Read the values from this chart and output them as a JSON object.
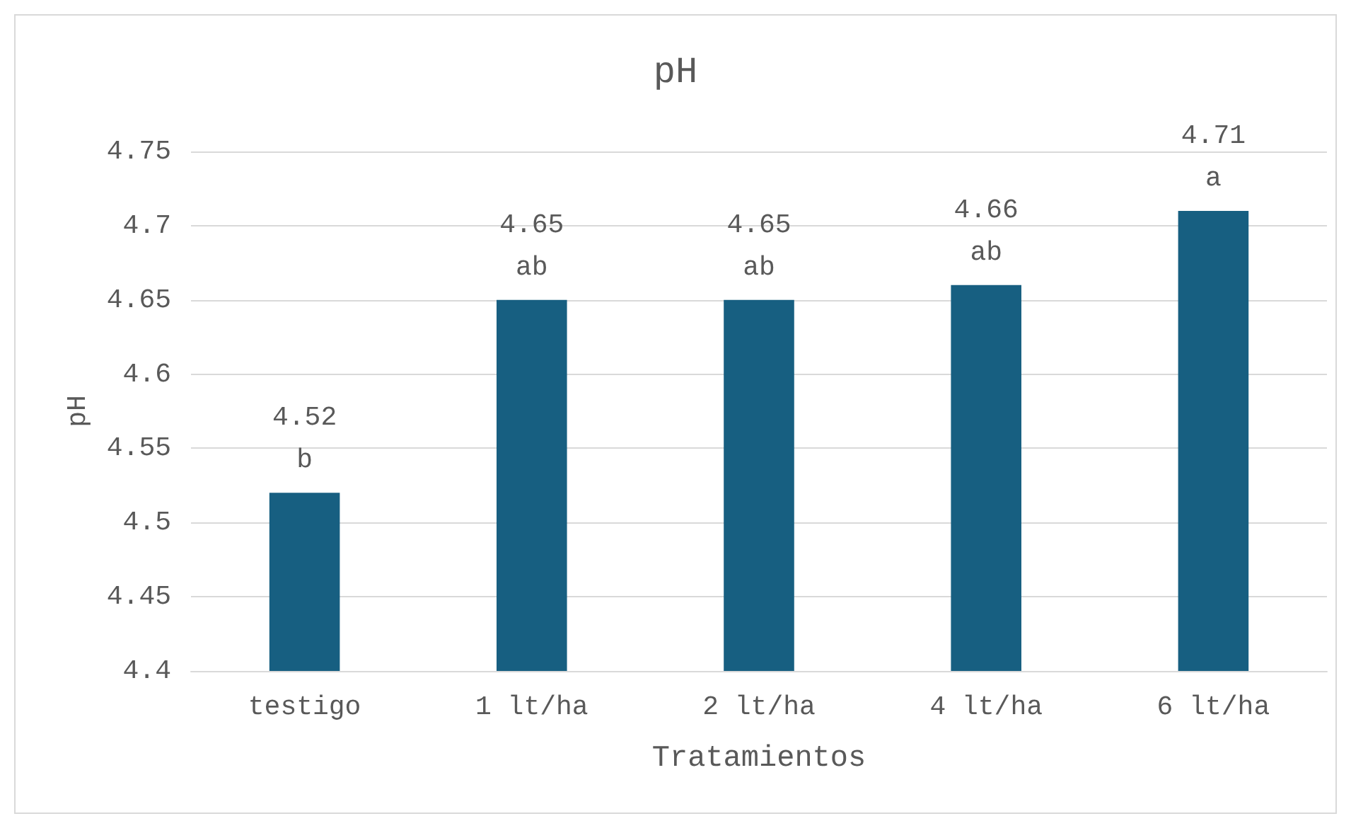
{
  "chart_data": {
    "type": "bar",
    "title": "pH",
    "xlabel": "Tratamientos",
    "ylabel": "pH",
    "categories": [
      "testigo",
      "1 lt/ha",
      "2 lt/ha",
      "4 lt/ha",
      "6 lt/ha"
    ],
    "series": [
      {
        "color": "#175f81",
        "values": [
          4.52,
          4.65,
          4.65,
          4.66,
          4.71
        ],
        "value_labels": [
          "4.52\nb",
          "4.65\nab",
          "4.65\nab",
          "4.66\nab",
          "4.71\na"
        ]
      }
    ],
    "ylim": [
      4.4,
      4.75
    ],
    "yticks": [
      4.4,
      4.45,
      4.5,
      4.55,
      4.6,
      4.65,
      4.7,
      4.75
    ],
    "grid": "y"
  }
}
